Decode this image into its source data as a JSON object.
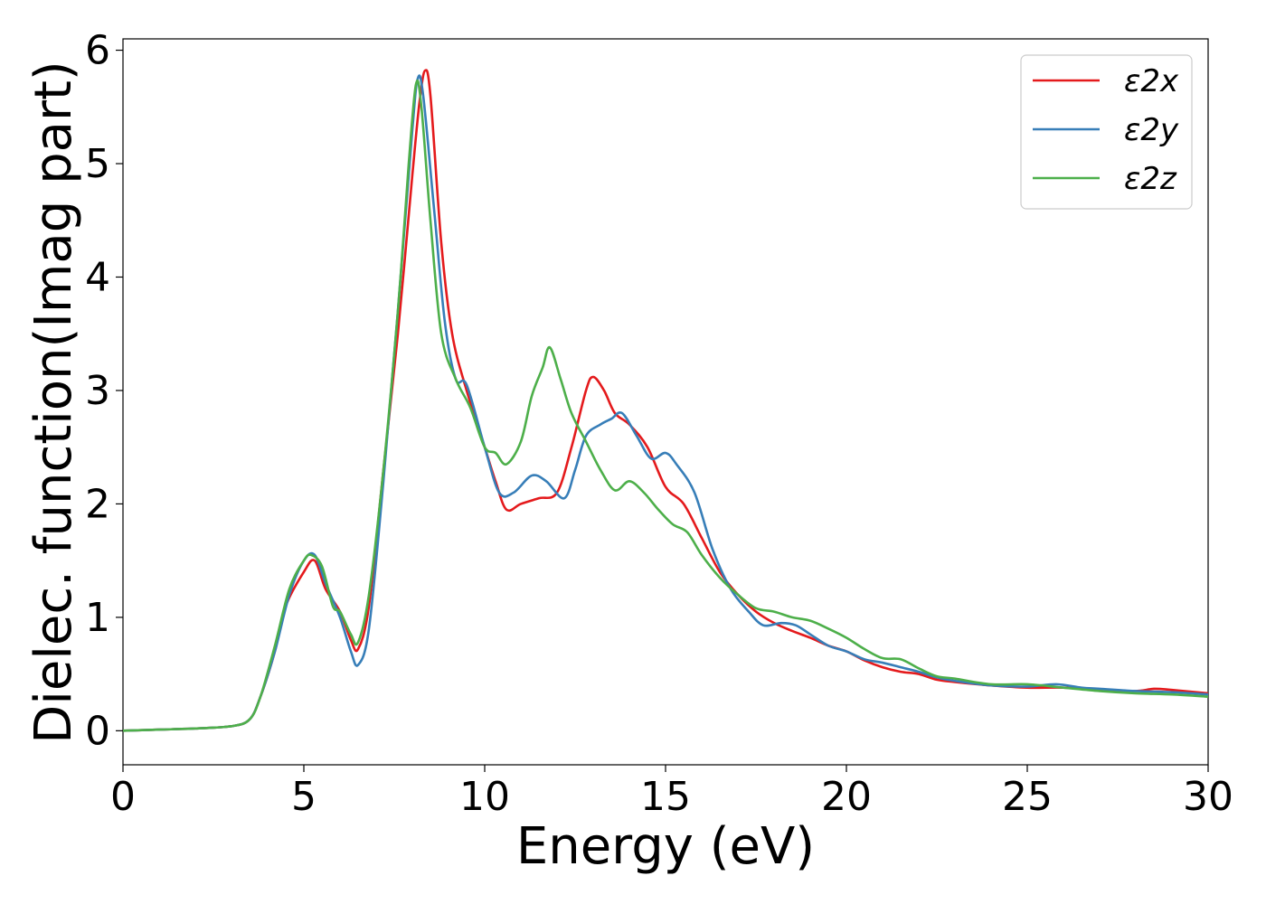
{
  "chart_data": {
    "type": "line",
    "title": "",
    "xlabel": "Energy (eV)",
    "ylabel": "Dielec. function(Imag part)",
    "xlim": [
      0,
      30
    ],
    "ylim": [
      -0.3,
      6.1
    ],
    "xticks": [
      0,
      5,
      10,
      15,
      20,
      25,
      30
    ],
    "yticks": [
      0,
      1,
      2,
      3,
      4,
      5,
      6
    ],
    "grid": false,
    "legend_position": "top-right",
    "series": [
      {
        "name": "ε2x",
        "color": "#e41a1c",
        "points": [
          [
            0,
            0
          ],
          [
            1,
            0.01
          ],
          [
            2,
            0.02
          ],
          [
            3,
            0.04
          ],
          [
            3.5,
            0.1
          ],
          [
            3.8,
            0.3
          ],
          [
            4.2,
            0.7
          ],
          [
            4.5,
            1.1
          ],
          [
            5.0,
            1.4
          ],
          [
            5.3,
            1.5
          ],
          [
            5.6,
            1.25
          ],
          [
            6.0,
            1.05
          ],
          [
            6.3,
            0.8
          ],
          [
            6.5,
            0.72
          ],
          [
            6.8,
            1.1
          ],
          [
            7.2,
            2.3
          ],
          [
            7.6,
            3.5
          ],
          [
            8.0,
            4.9
          ],
          [
            8.2,
            5.55
          ],
          [
            8.35,
            5.82
          ],
          [
            8.5,
            5.6
          ],
          [
            8.8,
            4.3
          ],
          [
            9.1,
            3.5
          ],
          [
            9.5,
            3.0
          ],
          [
            10.0,
            2.5
          ],
          [
            10.3,
            2.2
          ],
          [
            10.6,
            1.95
          ],
          [
            11.0,
            2.0
          ],
          [
            11.5,
            2.05
          ],
          [
            12.0,
            2.1
          ],
          [
            12.4,
            2.5
          ],
          [
            12.8,
            3.0
          ],
          [
            13.0,
            3.12
          ],
          [
            13.3,
            3.0
          ],
          [
            13.6,
            2.8
          ],
          [
            14.0,
            2.7
          ],
          [
            14.5,
            2.5
          ],
          [
            15.0,
            2.15
          ],
          [
            15.5,
            2.0
          ],
          [
            16.0,
            1.7
          ],
          [
            16.5,
            1.4
          ],
          [
            17.0,
            1.2
          ],
          [
            17.5,
            1.05
          ],
          [
            18.0,
            0.95
          ],
          [
            18.5,
            0.88
          ],
          [
            19.0,
            0.82
          ],
          [
            19.5,
            0.75
          ],
          [
            20.0,
            0.7
          ],
          [
            20.5,
            0.62
          ],
          [
            21.0,
            0.56
          ],
          [
            21.5,
            0.52
          ],
          [
            22.0,
            0.5
          ],
          [
            22.5,
            0.45
          ],
          [
            23.0,
            0.43
          ],
          [
            24.0,
            0.4
          ],
          [
            25.0,
            0.38
          ],
          [
            26.0,
            0.38
          ],
          [
            27.0,
            0.36
          ],
          [
            28.0,
            0.35
          ],
          [
            28.5,
            0.37
          ],
          [
            29.0,
            0.36
          ],
          [
            30.0,
            0.33
          ]
        ]
      },
      {
        "name": "ε2y",
        "color": "#377eb8",
        "points": [
          [
            0,
            0
          ],
          [
            1,
            0.01
          ],
          [
            2,
            0.02
          ],
          [
            3,
            0.04
          ],
          [
            3.5,
            0.1
          ],
          [
            3.8,
            0.3
          ],
          [
            4.2,
            0.7
          ],
          [
            4.6,
            1.2
          ],
          [
            5.0,
            1.5
          ],
          [
            5.3,
            1.55
          ],
          [
            5.6,
            1.3
          ],
          [
            6.0,
            1.0
          ],
          [
            6.3,
            0.7
          ],
          [
            6.5,
            0.58
          ],
          [
            6.8,
            0.9
          ],
          [
            7.2,
            2.2
          ],
          [
            7.6,
            3.7
          ],
          [
            8.0,
            5.3
          ],
          [
            8.15,
            5.75
          ],
          [
            8.3,
            5.6
          ],
          [
            8.6,
            4.6
          ],
          [
            8.9,
            3.6
          ],
          [
            9.2,
            3.1
          ],
          [
            9.5,
            3.05
          ],
          [
            10.0,
            2.5
          ],
          [
            10.4,
            2.1
          ],
          [
            10.8,
            2.1
          ],
          [
            11.3,
            2.25
          ],
          [
            11.7,
            2.2
          ],
          [
            12.2,
            2.05
          ],
          [
            12.5,
            2.3
          ],
          [
            12.8,
            2.6
          ],
          [
            13.2,
            2.7
          ],
          [
            13.5,
            2.75
          ],
          [
            13.8,
            2.8
          ],
          [
            14.2,
            2.6
          ],
          [
            14.6,
            2.4
          ],
          [
            15.0,
            2.45
          ],
          [
            15.3,
            2.35
          ],
          [
            15.8,
            2.1
          ],
          [
            16.3,
            1.6
          ],
          [
            16.8,
            1.25
          ],
          [
            17.3,
            1.05
          ],
          [
            17.7,
            0.93
          ],
          [
            18.2,
            0.95
          ],
          [
            18.6,
            0.93
          ],
          [
            19.0,
            0.85
          ],
          [
            19.5,
            0.75
          ],
          [
            20.0,
            0.7
          ],
          [
            20.5,
            0.63
          ],
          [
            21.0,
            0.6
          ],
          [
            21.5,
            0.56
          ],
          [
            22.0,
            0.52
          ],
          [
            22.5,
            0.47
          ],
          [
            23.0,
            0.44
          ],
          [
            24.0,
            0.4
          ],
          [
            25.0,
            0.39
          ],
          [
            25.8,
            0.41
          ],
          [
            26.5,
            0.38
          ],
          [
            27.0,
            0.37
          ],
          [
            28.0,
            0.35
          ],
          [
            29.0,
            0.34
          ],
          [
            30.0,
            0.32
          ]
        ]
      },
      {
        "name": "ε2z",
        "color": "#4daf4a",
        "points": [
          [
            0,
            0
          ],
          [
            1,
            0.01
          ],
          [
            2,
            0.02
          ],
          [
            3,
            0.04
          ],
          [
            3.5,
            0.1
          ],
          [
            3.8,
            0.3
          ],
          [
            4.2,
            0.75
          ],
          [
            4.6,
            1.25
          ],
          [
            5.0,
            1.5
          ],
          [
            5.2,
            1.55
          ],
          [
            5.5,
            1.45
          ],
          [
            5.8,
            1.1
          ],
          [
            6.0,
            1.05
          ],
          [
            6.3,
            0.85
          ],
          [
            6.5,
            0.78
          ],
          [
            6.8,
            1.2
          ],
          [
            7.2,
            2.3
          ],
          [
            7.6,
            3.7
          ],
          [
            7.9,
            5.0
          ],
          [
            8.1,
            5.7
          ],
          [
            8.25,
            5.5
          ],
          [
            8.5,
            4.5
          ],
          [
            8.8,
            3.5
          ],
          [
            9.2,
            3.1
          ],
          [
            9.6,
            2.85
          ],
          [
            10.0,
            2.5
          ],
          [
            10.3,
            2.45
          ],
          [
            10.6,
            2.35
          ],
          [
            11.0,
            2.55
          ],
          [
            11.3,
            2.95
          ],
          [
            11.6,
            3.2
          ],
          [
            11.8,
            3.38
          ],
          [
            12.1,
            3.1
          ],
          [
            12.4,
            2.8
          ],
          [
            12.8,
            2.55
          ],
          [
            13.2,
            2.3
          ],
          [
            13.6,
            2.12
          ],
          [
            14.0,
            2.2
          ],
          [
            14.4,
            2.1
          ],
          [
            14.8,
            1.95
          ],
          [
            15.2,
            1.82
          ],
          [
            15.6,
            1.75
          ],
          [
            16.0,
            1.55
          ],
          [
            16.5,
            1.35
          ],
          [
            17.0,
            1.2
          ],
          [
            17.5,
            1.08
          ],
          [
            18.0,
            1.05
          ],
          [
            18.5,
            1.0
          ],
          [
            19.0,
            0.97
          ],
          [
            19.5,
            0.9
          ],
          [
            20.0,
            0.82
          ],
          [
            20.5,
            0.72
          ],
          [
            21.0,
            0.64
          ],
          [
            21.5,
            0.63
          ],
          [
            22.0,
            0.55
          ],
          [
            22.5,
            0.48
          ],
          [
            23.0,
            0.46
          ],
          [
            24.0,
            0.41
          ],
          [
            25.0,
            0.41
          ],
          [
            26.0,
            0.38
          ],
          [
            27.0,
            0.35
          ],
          [
            28.0,
            0.33
          ],
          [
            29.0,
            0.32
          ],
          [
            30.0,
            0.3
          ]
        ]
      }
    ]
  }
}
